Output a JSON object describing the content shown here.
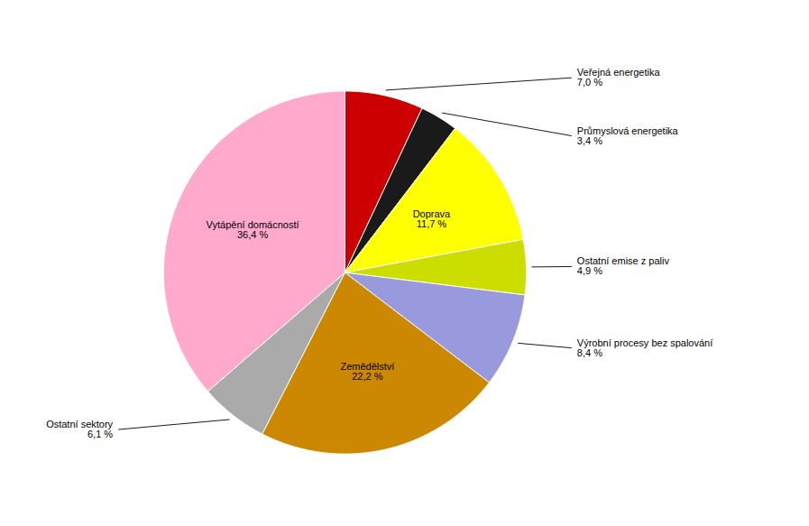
{
  "chart_data": {
    "type": "pie",
    "categories": [
      "Veřejná energetika",
      "Průmyslová energetika",
      "Doprava",
      "Ostatní emise z paliv",
      "Výrobní procesy bez spalování",
      "Zemědělství",
      "Ostatní sektory",
      "Vytápění domácností"
    ],
    "values": [
      7.0,
      3.4,
      11.7,
      4.9,
      8.4,
      22.2,
      6.1,
      36.4
    ],
    "value_labels": [
      "7,0 %",
      "3,4 %",
      "11,7 %",
      "4,9 %",
      "8,4 %",
      "22,2 %",
      "6,1 %",
      "36,4 %"
    ],
    "colors": [
      "#cc0000",
      "#1a1a1a",
      "#ffff00",
      "#ccdd00",
      "#9999dd",
      "#cc8800",
      "#aaaaaa",
      "#ffaacc"
    ],
    "data_labels": true
  }
}
